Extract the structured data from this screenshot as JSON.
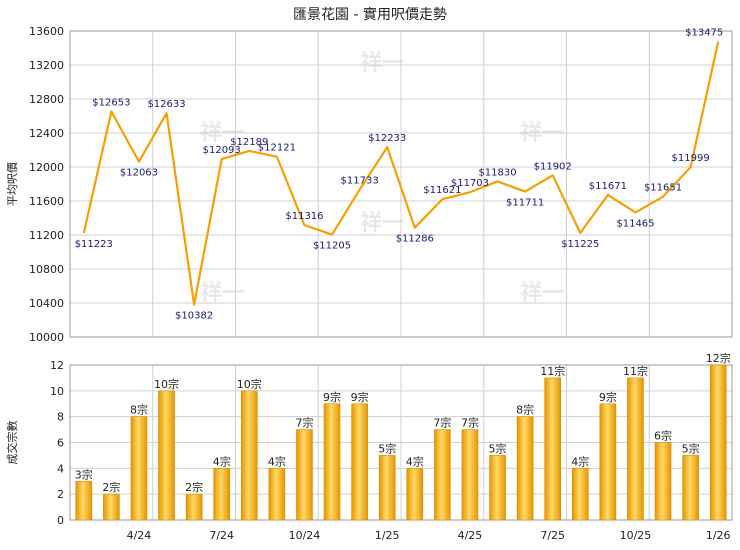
{
  "title": "匯景花園 - 實用呎價走勢",
  "watermark": "祥一",
  "colors": {
    "line": "#f5a000",
    "bar_light": "#ffd966",
    "bar_dark": "#e69500",
    "grid": "#d0d0d0"
  },
  "chart_data": [
    {
      "type": "line",
      "ylabel": "平均呎價",
      "ylim": [
        10000,
        13600
      ],
      "yticks": [
        10000,
        10400,
        10800,
        11200,
        11600,
        12000,
        12400,
        12800,
        13200,
        13600
      ],
      "value_prefix": "$",
      "values": [
        11223,
        12653,
        12063,
        12633,
        10382,
        12093,
        12189,
        12121,
        11316,
        11205,
        11733,
        12233,
        11286,
        11621,
        11703,
        11830,
        11711,
        11902,
        11225,
        11671,
        11465,
        11651,
        11999,
        13475
      ],
      "grid": true
    },
    {
      "type": "bar",
      "ylabel": "成交宗數",
      "ylim": [
        0,
        12
      ],
      "yticks": [
        0,
        2,
        4,
        6,
        8,
        10,
        12
      ],
      "value_suffix": "宗",
      "values": [
        3,
        2,
        8,
        10,
        2,
        4,
        10,
        4,
        7,
        9,
        9,
        5,
        4,
        7,
        7,
        5,
        8,
        11,
        4,
        9,
        11,
        6,
        5,
        12
      ],
      "xticks": [
        {
          "index": 2,
          "label": "4/24"
        },
        {
          "index": 5,
          "label": "7/24"
        },
        {
          "index": 8,
          "label": "10/24"
        },
        {
          "index": 11,
          "label": "1/25"
        },
        {
          "index": 14,
          "label": "4/25"
        },
        {
          "index": 17,
          "label": "7/25"
        },
        {
          "index": 20,
          "label": "10/25"
        },
        {
          "index": 23,
          "label": "1/26"
        }
      ],
      "grid": true
    }
  ]
}
